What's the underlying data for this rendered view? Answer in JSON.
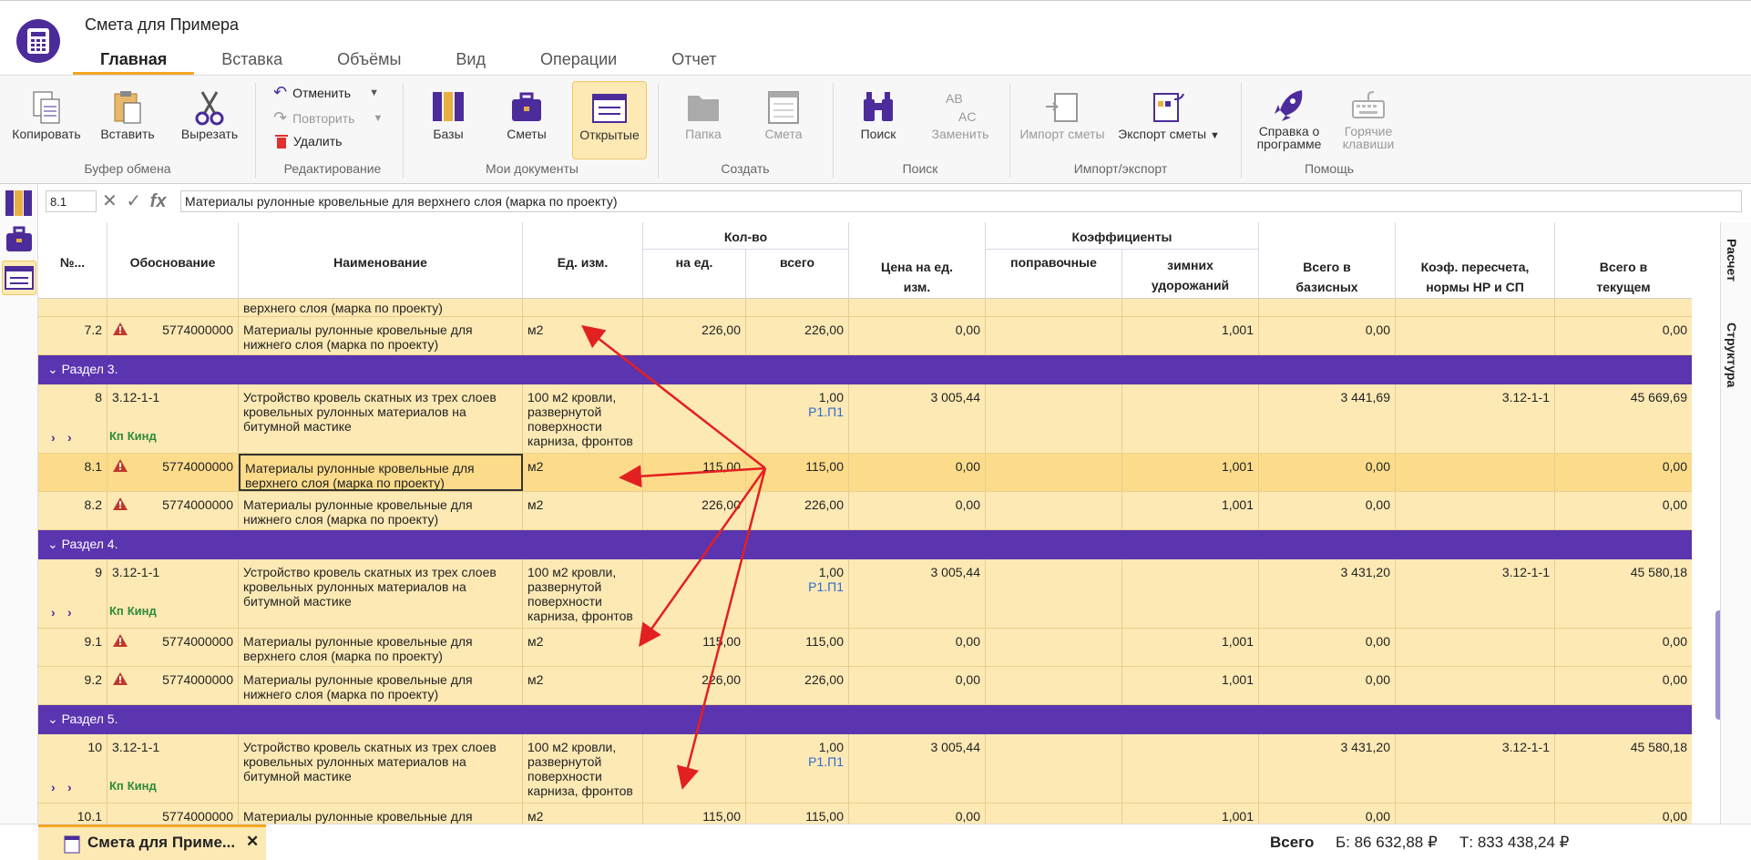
{
  "app": {
    "title": "Смета для Примера"
  },
  "tabs": [
    "Главная",
    "Вставка",
    "Объёмы",
    "Вид",
    "Операции",
    "Отчет"
  ],
  "ribbon": {
    "copy": "Копировать",
    "paste": "Вставить",
    "cut": "Вырезать",
    "clipboard_group": "Буфер обмена",
    "undo": "Отменить",
    "redo": "Повторить",
    "delete": "Удалить",
    "edit_group": "Редактирование",
    "bases": "Базы",
    "estimates": "Сметы",
    "open": "Открытые",
    "docs_group": "Мои документы",
    "folder": "Папка",
    "estimate": "Смета",
    "create_group": "Создать",
    "search": "Поиск",
    "replace": "Заменить",
    "search_group": "Поиск",
    "import": "Импорт сметы",
    "export": "Экспорт сметы",
    "io_group": "Импорт/экспорт",
    "about_1": "Справка о",
    "about_2": "программе",
    "hotkeys_1": "Горячие",
    "hotkeys_2": "клавиши",
    "help_group": "Помощь"
  },
  "formula": {
    "cell": "8.1",
    "value": "Материалы рулонные кровельные для верхнего слоя (марка по проекту)"
  },
  "side_tabs": {
    "calc": "Расчет",
    "structure": "Структура"
  },
  "headers": {
    "num": "№...",
    "basis": "Обоснование",
    "name": "Наименование",
    "unit": "Ед. изм.",
    "qty": "Кол-во",
    "per_unit": "на ед.",
    "total": "всего",
    "price_1": "Цена на ед.",
    "price_2": "изм.",
    "coef": "Коэффициенты",
    "corr": "поправочные",
    "winter_1": "зимних",
    "winter_2": "удорожаний",
    "base_1": "Всего в",
    "base_2": "базисных",
    "recalc_1": "Коэф. пересчета,",
    "recalc_2": "нормы НР и СП",
    "cur_1": "Всего в",
    "cur_2": "текущем"
  },
  "rows": {
    "r71_name": "верхнего слоя (марка по проекту)",
    "r72": {
      "num": "7.2",
      "code": "5774000000",
      "name1": "Материалы рулонные кровельные для",
      "name2": "нижнего слоя (марка по проекту)",
      "unit": "м2",
      "per": "226,00",
      "tot": "226,00",
      "price": "0,00",
      "winter": "1,001",
      "base": "0,00",
      "cur": "0,00"
    },
    "s3": "Раздел 3.",
    "r8": {
      "num": "8",
      "code": "3.12-1-1",
      "name1": "Устройство кровель скатных из трех слоев",
      "name2": "кровельных рулонных материалов на",
      "name3": "битумной мастике",
      "unit1": "100 м2 кровли,",
      "unit2": "развернутой",
      "unit3": "поверхности",
      "unit4": "карниза, фронтов",
      "tot": "1,00",
      "ref": "Р1.П1",
      "price": "3 005,44",
      "base": "3 441,69",
      "recalc": "3.12-1-1",
      "cur": "45 669,69",
      "kp": "Кп",
      "kind": "Кинд"
    },
    "r81": {
      "num": "8.1",
      "code": "5774000000",
      "name1": "Материалы рулонные кровельные для",
      "name2": "верхнего слоя (марка по проекту)",
      "unit": "м2",
      "per": "115,00",
      "tot": "115,00",
      "price": "0,00",
      "winter": "1,001",
      "base": "0,00",
      "cur": "0,00"
    },
    "r82": {
      "num": "8.2",
      "code": "5774000000",
      "name1": "Материалы рулонные кровельные для",
      "name2": "нижнего слоя (марка по проекту)",
      "unit": "м2",
      "per": "226,00",
      "tot": "226,00",
      "price": "0,00",
      "winter": "1,001",
      "base": "0,00",
      "cur": "0,00"
    },
    "s4": "Раздел 4.",
    "r9": {
      "num": "9",
      "code": "3.12-1-1",
      "name1": "Устройство кровель скатных из трех слоев",
      "name2": "кровельных рулонных материалов на",
      "name3": "битумной мастике",
      "unit1": "100 м2 кровли,",
      "unit2": "развернутой",
      "unit3": "поверхности",
      "unit4": "карниза, фронтов",
      "tot": "1,00",
      "ref": "Р1.П1",
      "price": "3 005,44",
      "base": "3 431,20",
      "recalc": "3.12-1-1",
      "cur": "45 580,18",
      "kp": "Кп",
      "kind": "Кинд"
    },
    "r91": {
      "num": "9.1",
      "code": "5774000000",
      "name1": "Материалы рулонные кровельные для",
      "name2": "верхнего слоя (марка по проекту)",
      "unit": "м2",
      "per": "115,00",
      "tot": "115,00",
      "price": "0,00",
      "winter": "1,001",
      "base": "0,00",
      "cur": "0,00"
    },
    "r92": {
      "num": "9.2",
      "code": "5774000000",
      "name1": "Материалы рулонные кровельные для",
      "name2": "нижнего слоя (марка по проекту)",
      "unit": "м2",
      "per": "226,00",
      "tot": "226,00",
      "price": "0,00",
      "winter": "1,001",
      "base": "0,00",
      "cur": "0,00"
    },
    "s5": "Раздел 5.",
    "r10": {
      "num": "10",
      "code": "3.12-1-1",
      "name1": "Устройство кровель скатных из трех слоев",
      "name2": "кровельных рулонных материалов на",
      "name3": "битумной мастике",
      "unit1": "100 м2 кровли,",
      "unit2": "развернутой",
      "unit3": "поверхности",
      "unit4": "карниза, фронтов",
      "tot": "1,00",
      "ref": "Р1.П1",
      "price": "3 005,44",
      "base": "3 431,20",
      "recalc": "3.12-1-1",
      "cur": "45 580,18",
      "kp": "Кп",
      "kind": "Кинд"
    },
    "r101": {
      "num": "10.1",
      "code": "5774000000",
      "name1": "Материалы рулонные кровельные для",
      "unit": "м2",
      "per": "115,00",
      "tot": "115,00",
      "price": "0,00",
      "winter": "1,001",
      "base": "0,00",
      "cur": "0,00"
    }
  },
  "status": {
    "doc_tab": "Смета для Приме...",
    "total_label": "Всего",
    "base_total": "Б: 86 632,88 ₽",
    "cur_total": "Т: 833 438,24 ₽"
  },
  "colors": {
    "accent": "#5b34b0",
    "row_bg": "#fde9b4",
    "tab_underline": "#f5a623",
    "arrow": "#e32020"
  }
}
